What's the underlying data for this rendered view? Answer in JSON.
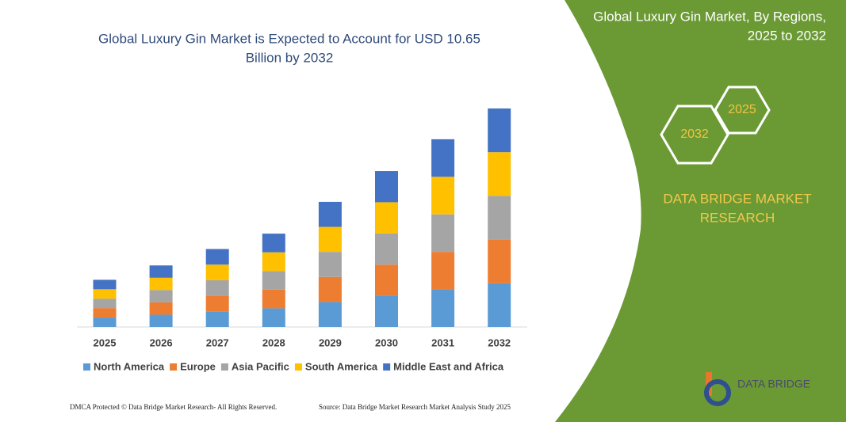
{
  "chart_data": {
    "type": "stacked-bar",
    "title": [
      "Global Luxury Gin Market is Expected to Account for USD 10.65",
      "Billion by 2032"
    ],
    "categories": [
      "2025",
      "2026",
      "2027",
      "2028",
      "2029",
      "2030",
      "2031",
      "2032"
    ],
    "series": [
      {
        "name": "North America",
        "color": "#5b9bd5",
        "values": [
          0.46,
          0.6,
          0.76,
          0.91,
          1.22,
          1.52,
          1.83,
          2.13
        ]
      },
      {
        "name": "Europe",
        "color": "#ed7d31",
        "values": [
          0.46,
          0.6,
          0.76,
          0.91,
          1.22,
          1.52,
          1.83,
          2.13
        ]
      },
      {
        "name": "Asia Pacific",
        "color": "#a5a5a5",
        "values": [
          0.46,
          0.6,
          0.76,
          0.91,
          1.22,
          1.52,
          1.83,
          2.13
        ]
      },
      {
        "name": "South America",
        "color": "#ffc000",
        "values": [
          0.46,
          0.6,
          0.76,
          0.91,
          1.22,
          1.52,
          1.83,
          2.13
        ]
      },
      {
        "name": "Middle East and Africa",
        "color": "#4472c4",
        "values": [
          0.46,
          0.6,
          0.76,
          0.91,
          1.22,
          1.52,
          1.83,
          2.13
        ]
      }
    ],
    "ylim": [
      0,
      10.65
    ],
    "legend": "bottom"
  },
  "panel": {
    "title": [
      "Global Luxury Gin Market, By Regions,",
      "2025 to 2032"
    ],
    "hex_small": "2025",
    "hex_large": "2032",
    "brand": [
      "DATA BRIDGE MARKET",
      "RESEARCH"
    ],
    "logo": "DATA BRIDGE"
  },
  "footer": {
    "left": "DMCA Protected © Data Bridge Market Research-  All Rights Reserved.",
    "right": "Source: Data Bridge Market Research  Market Analysis Study 2025"
  }
}
